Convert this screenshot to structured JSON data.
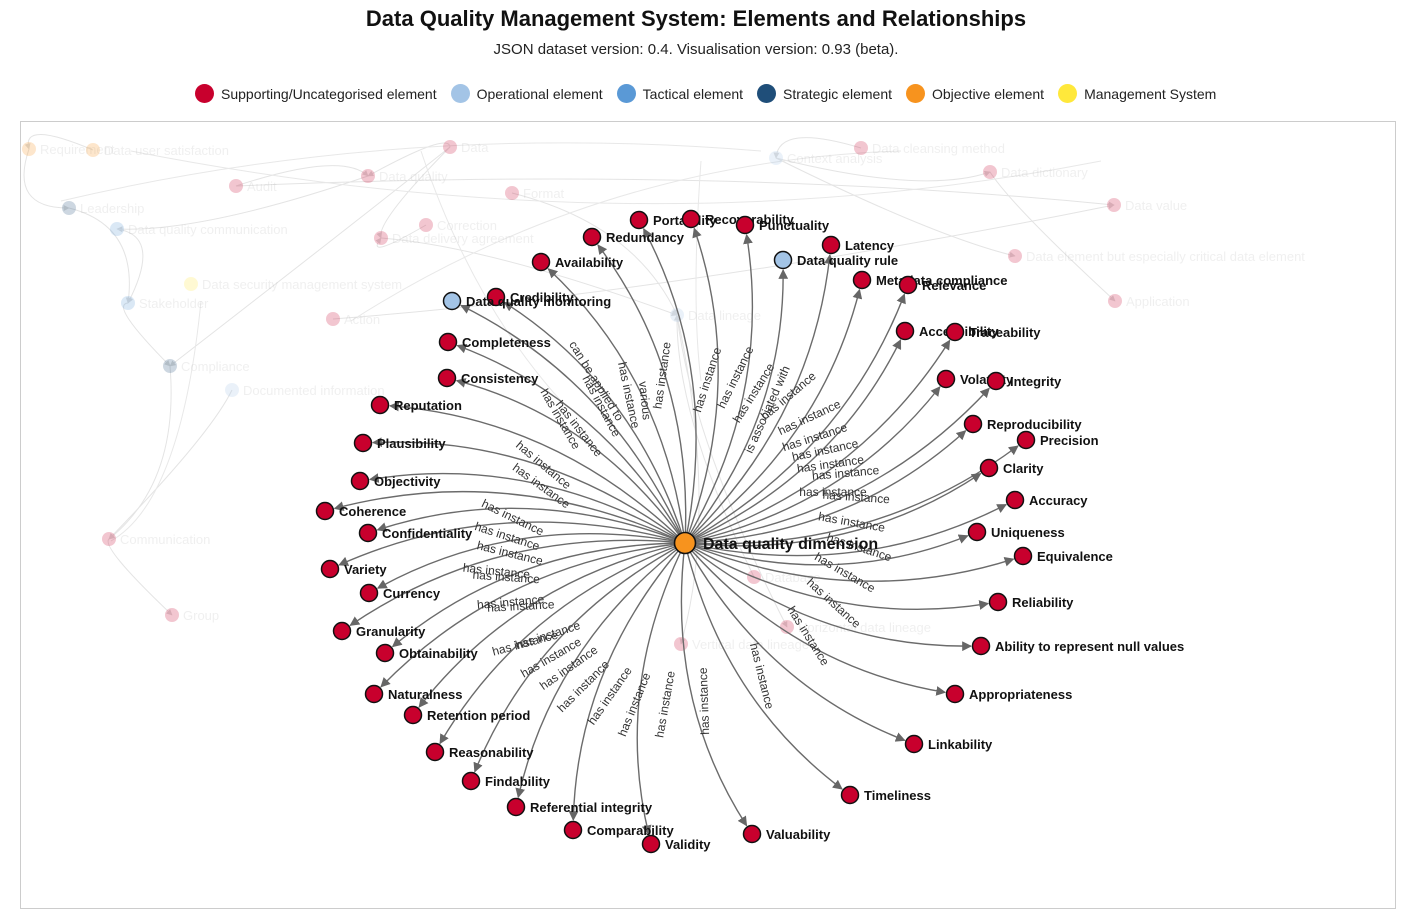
{
  "title": "Data Quality Management System: Elements and Relationships",
  "subtitle": "JSON dataset version: 0.4. Visualisation version: 0.93 (beta).",
  "colors": {
    "supporting": "#c8002d",
    "operational": "#a3c4e6",
    "tactical": "#5a99d6",
    "strategic": "#1f4e79",
    "objective": "#f7931e",
    "management": "#ffe83b"
  },
  "legend": [
    {
      "label": "Supporting/Uncategorised element",
      "type": "supporting"
    },
    {
      "label": "Operational element",
      "type": "operational"
    },
    {
      "label": "Tactical element",
      "type": "tactical"
    },
    {
      "label": "Strategic element",
      "type": "strategic"
    },
    {
      "label": "Objective element",
      "type": "objective"
    },
    {
      "label": "Management System",
      "type": "management"
    }
  ],
  "center_node": {
    "label": "Data quality dimension",
    "type": "objective"
  },
  "nodes": [
    {
      "label": "Portability",
      "type": "supporting"
    },
    {
      "label": "Recoverability",
      "type": "supporting"
    },
    {
      "label": "Punctuality",
      "type": "supporting"
    },
    {
      "label": "Redundancy",
      "type": "supporting"
    },
    {
      "label": "Latency",
      "type": "supporting"
    },
    {
      "label": "Data quality rule",
      "type": "operational"
    },
    {
      "label": "Availability",
      "type": "supporting"
    },
    {
      "label": "Metadata compliance",
      "type": "supporting"
    },
    {
      "label": "Relevance",
      "type": "supporting"
    },
    {
      "label": "Credibility",
      "type": "supporting"
    },
    {
      "label": "Data quality monitoring",
      "type": "operational"
    },
    {
      "label": "Accessibility",
      "type": "supporting"
    },
    {
      "label": "Traceability",
      "type": "supporting"
    },
    {
      "label": "Completeness",
      "type": "supporting"
    },
    {
      "label": "Consistency",
      "type": "supporting"
    },
    {
      "label": "Volatility",
      "type": "supporting"
    },
    {
      "label": "Integrity",
      "type": "supporting"
    },
    {
      "label": "Reputation",
      "type": "supporting"
    },
    {
      "label": "Reproducibility",
      "type": "supporting"
    },
    {
      "label": "Precision",
      "type": "supporting"
    },
    {
      "label": "Plausibility",
      "type": "supporting"
    },
    {
      "label": "Clarity",
      "type": "supporting"
    },
    {
      "label": "Objectivity",
      "type": "supporting"
    },
    {
      "label": "Accuracy",
      "type": "supporting"
    },
    {
      "label": "Coherence",
      "type": "supporting"
    },
    {
      "label": "Uniqueness",
      "type": "supporting"
    },
    {
      "label": "Confidentiality",
      "type": "supporting"
    },
    {
      "label": "Equivalence",
      "type": "supporting"
    },
    {
      "label": "Variety",
      "type": "supporting"
    },
    {
      "label": "Currency",
      "type": "supporting"
    },
    {
      "label": "Reliability",
      "type": "supporting"
    },
    {
      "label": "Granularity",
      "type": "supporting"
    },
    {
      "label": "Ability to represent null values",
      "type": "supporting"
    },
    {
      "label": "Obtainability",
      "type": "supporting"
    },
    {
      "label": "Naturalness",
      "type": "supporting"
    },
    {
      "label": "Appropriateness",
      "type": "supporting"
    },
    {
      "label": "Retention period",
      "type": "supporting"
    },
    {
      "label": "Linkability",
      "type": "supporting"
    },
    {
      "label": "Reasonability",
      "type": "supporting"
    },
    {
      "label": "Findability",
      "type": "supporting"
    },
    {
      "label": "Timeliness",
      "type": "supporting"
    },
    {
      "label": "Referential integrity",
      "type": "supporting"
    },
    {
      "label": "Comparability",
      "type": "supporting"
    },
    {
      "label": "Valuability",
      "type": "supporting"
    },
    {
      "label": "Validity",
      "type": "supporting"
    }
  ],
  "edge_labels": {
    "instance": "has instance",
    "applied": "can be applied to",
    "associated": "is associated with",
    "various": "various"
  },
  "background_nodes": [
    {
      "label": "Requirement",
      "type": "objective"
    },
    {
      "label": "Data user satisfaction",
      "type": "objective"
    },
    {
      "label": "Data",
      "type": "supporting"
    },
    {
      "label": "Data cleansing method",
      "type": "supporting"
    },
    {
      "label": "Context analysis",
      "type": "operational"
    },
    {
      "label": "Data dictionary",
      "type": "supporting"
    },
    {
      "label": "Audit",
      "type": "supporting"
    },
    {
      "label": "Data quality",
      "type": "supporting"
    },
    {
      "label": "Format",
      "type": "supporting"
    },
    {
      "label": "Data value",
      "type": "supporting"
    },
    {
      "label": "Leadership",
      "type": "strategic"
    },
    {
      "label": "Data quality communication",
      "type": "tactical"
    },
    {
      "label": "Correction",
      "type": "supporting"
    },
    {
      "label": "Data delivery agreement",
      "type": "supporting"
    },
    {
      "label": "Data element but especially critical data element",
      "type": "supporting"
    },
    {
      "label": "Data security management system",
      "type": "management"
    },
    {
      "label": "Stakeholder",
      "type": "tactical"
    },
    {
      "label": "Action",
      "type": "supporting"
    },
    {
      "label": "Application",
      "type": "supporting"
    },
    {
      "label": "Data lineage",
      "type": "operational"
    },
    {
      "label": "Compliance",
      "type": "strategic"
    },
    {
      "label": "Documented information",
      "type": "operational"
    },
    {
      "label": "Communication",
      "type": "supporting"
    },
    {
      "label": "Group",
      "type": "supporting"
    },
    {
      "label": "Horizontal data lineage",
      "type": "supporting"
    },
    {
      "label": "Vertical data lineage",
      "type": "supporting"
    },
    {
      "label": "Database",
      "type": "supporting"
    }
  ]
}
